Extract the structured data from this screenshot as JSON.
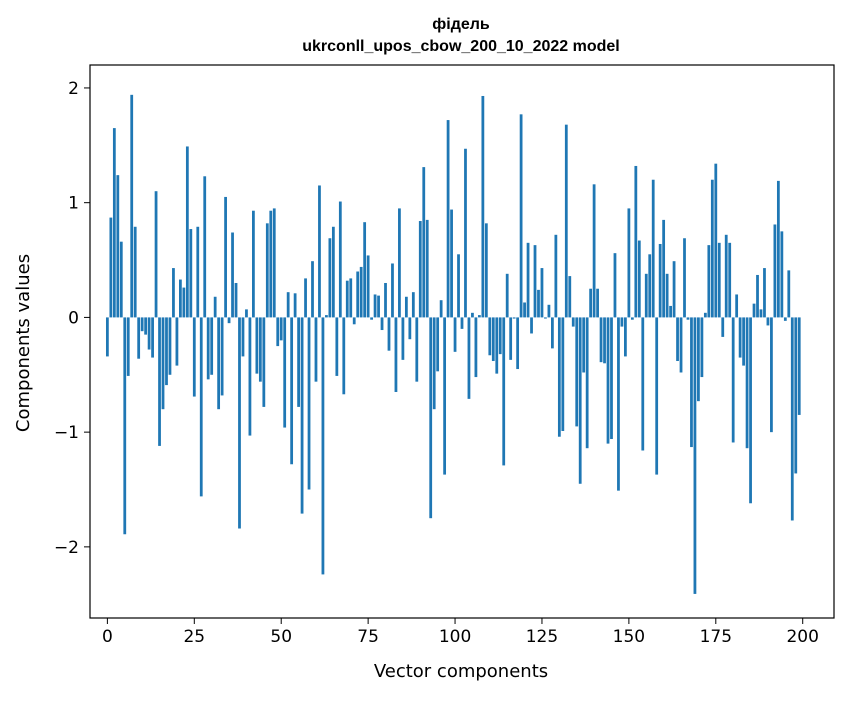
{
  "chart_data": {
    "type": "bar",
    "title": "фідель",
    "subtitle": "ukrconll_upos_cbow_200_10_2022 model",
    "xlabel": "Vector components",
    "ylabel": "Components values",
    "xlim": [
      -5,
      209
    ],
    "ylim": [
      -2.62,
      2.2
    ],
    "xticks": [
      0,
      25,
      50,
      75,
      100,
      125,
      150,
      175,
      200
    ],
    "yticks": [
      2,
      1,
      0,
      -1,
      -2
    ],
    "ytick_labels": [
      "2",
      "1",
      "0",
      "−1",
      "−2"
    ],
    "bar_color": "#1f77b4",
    "grid": false,
    "x": [
      0,
      1,
      2,
      3,
      4,
      5,
      6,
      7,
      8,
      9,
      10,
      11,
      12,
      13,
      14,
      15,
      16,
      17,
      18,
      19,
      20,
      21,
      22,
      23,
      24,
      25,
      26,
      27,
      28,
      29,
      30,
      31,
      32,
      33,
      34,
      35,
      36,
      37,
      38,
      39,
      40,
      41,
      42,
      43,
      44,
      45,
      46,
      47,
      48,
      49,
      50,
      51,
      52,
      53,
      54,
      55,
      56,
      57,
      58,
      59,
      60,
      61,
      62,
      63,
      64,
      65,
      66,
      67,
      68,
      69,
      70,
      71,
      72,
      73,
      74,
      75,
      76,
      77,
      78,
      79,
      80,
      81,
      82,
      83,
      84,
      85,
      86,
      87,
      88,
      89,
      90,
      91,
      92,
      93,
      94,
      95,
      96,
      97,
      98,
      99,
      100,
      101,
      102,
      103,
      104,
      105,
      106,
      107,
      108,
      109,
      110,
      111,
      112,
      113,
      114,
      115,
      116,
      117,
      118,
      119,
      120,
      121,
      122,
      123,
      124,
      125,
      126,
      127,
      128,
      129,
      130,
      131,
      132,
      133,
      134,
      135,
      136,
      137,
      138,
      139,
      140,
      141,
      142,
      143,
      144,
      145,
      146,
      147,
      148,
      149,
      150,
      151,
      152,
      153,
      154,
      155,
      156,
      157,
      158,
      159,
      160,
      161,
      162,
      163,
      164,
      165,
      166,
      167,
      168,
      169,
      170,
      171,
      172,
      173,
      174,
      175,
      176,
      177,
      178,
      179,
      180,
      181,
      182,
      183,
      184,
      185,
      186,
      187,
      188,
      189,
      190,
      191,
      192,
      193,
      194,
      195,
      196,
      197,
      198,
      199
    ],
    "values": [
      -0.34,
      0.87,
      1.65,
      1.24,
      0.66,
      -1.89,
      -0.51,
      1.94,
      0.79,
      -0.36,
      -0.12,
      -0.15,
      -0.28,
      -0.35,
      1.1,
      -1.12,
      -0.8,
      -0.59,
      -0.5,
      0.43,
      -0.42,
      0.33,
      0.26,
      1.49,
      0.77,
      -0.69,
      0.79,
      -1.56,
      1.23,
      -0.54,
      -0.5,
      0.18,
      -0.8,
      -0.68,
      1.05,
      -0.05,
      0.74,
      0.3,
      -1.84,
      -0.34,
      0.07,
      -1.03,
      0.93,
      -0.49,
      -0.56,
      -0.78,
      0.82,
      0.93,
      0.95,
      -0.25,
      -0.2,
      -0.96,
      0.22,
      -1.28,
      0.21,
      -0.78,
      -1.71,
      0.34,
      -1.5,
      0.49,
      -0.56,
      1.15,
      -2.24,
      0.02,
      0.69,
      0.79,
      -0.51,
      1.01,
      -0.67,
      0.32,
      0.34,
      -0.06,
      0.4,
      0.44,
      0.83,
      0.54,
      -0.02,
      0.2,
      0.19,
      -0.11,
      0.3,
      -0.29,
      0.47,
      -0.65,
      0.95,
      -0.37,
      0.18,
      -0.19,
      0.22,
      -0.56,
      0.84,
      1.31,
      0.85,
      -1.75,
      -0.8,
      -0.47,
      0.15,
      -1.37,
      1.72,
      0.94,
      -0.3,
      0.55,
      -0.1,
      1.47,
      -0.71,
      0.04,
      -0.52,
      0.02,
      1.93,
      0.82,
      -0.33,
      -0.38,
      -0.49,
      -0.32,
      -1.29,
      0.38,
      -0.37,
      -0.01,
      -0.45,
      1.77,
      0.13,
      0.65,
      -0.14,
      0.63,
      0.24,
      0.43,
      -0.01,
      0.11,
      -0.27,
      0.72,
      -1.04,
      -0.99,
      1.68,
      0.36,
      -0.08,
      -0.95,
      -1.45,
      -0.48,
      -1.14,
      0.25,
      1.16,
      0.25,
      -0.39,
      -0.4,
      -1.1,
      -1.06,
      0.56,
      -1.51,
      -0.08,
      -0.34,
      0.95,
      -0.02,
      1.32,
      0.67,
      -1.16,
      0.38,
      0.55,
      1.2,
      -1.37,
      0.64,
      0.85,
      0.38,
      0.1,
      0.49,
      -0.38,
      -0.48,
      0.69,
      -0.02,
      -1.13,
      -2.41,
      -0.73,
      -0.52,
      0.04,
      0.63,
      1.2,
      1.34,
      0.65,
      -0.17,
      0.72,
      0.65,
      -1.09,
      0.2,
      -0.35,
      -0.42,
      -1.14,
      -1.62,
      0.12,
      0.37,
      0.07,
      0.43,
      -0.07,
      -1.0,
      0.81,
      1.19,
      0.75,
      -0.03,
      0.41,
      -1.77,
      -1.36,
      -0.85
    ]
  }
}
